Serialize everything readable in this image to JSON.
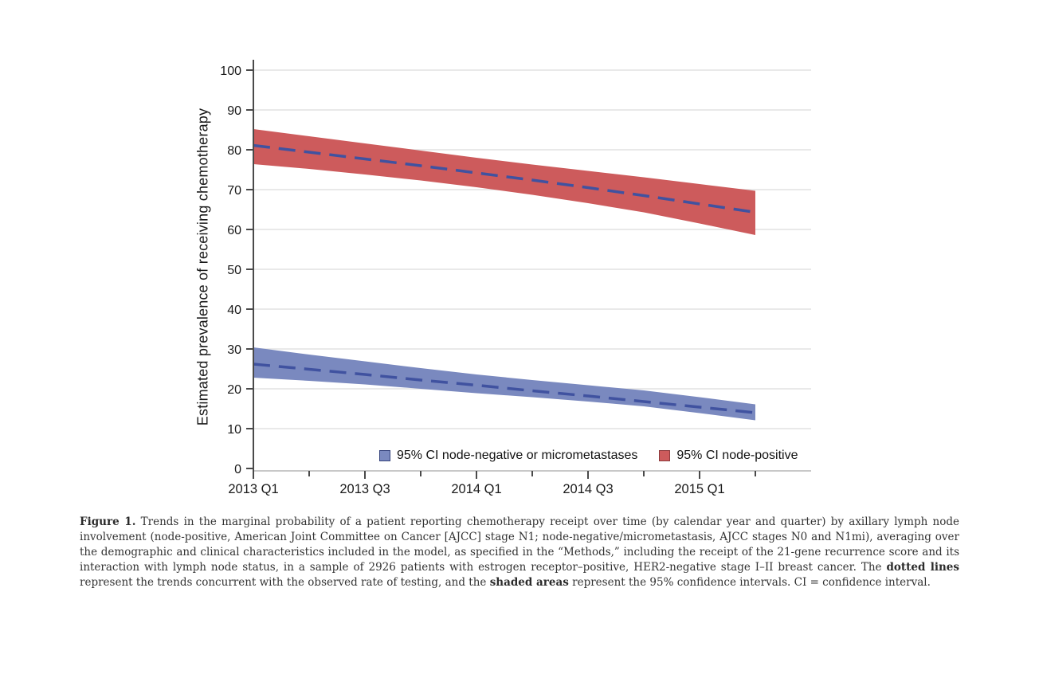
{
  "figure": {
    "caption": {
      "label": "Figure 1.",
      "body_before_bold1": " Trends in the marginal probability of a patient reporting chemotherapy receipt over time (by calendar year and quarter) by axillary lymph node involvement (node-positive, American Joint Committee on Cancer [AJCC] stage N1; node-negative/micrometastasis, AJCC stages N0 and N1mi), averaging over the demographic and clinical characteristics included in the model, as specified in the “Methods,” including the receipt of the 21-gene recurrence score and its interaction with lymph node status, in a sample of 2926 patients with estrogen receptor–positive, HER2-negative stage I–II breast cancer. The ",
      "bold1": "dotted lines",
      "body_middle": " represent the trends concurrent with the observed rate of testing, and the ",
      "bold2": "shaded areas",
      "body_after": " represent the 95% confidence intervals. CI = confidence interval."
    }
  },
  "chart_data": {
    "type": "area",
    "title": "",
    "xlabel": "",
    "ylabel": "Estimated prevalence of receiving chemotherapy",
    "ylim": [
      0,
      100
    ],
    "yticks": [
      0,
      10,
      20,
      30,
      40,
      50,
      60,
      70,
      80,
      90,
      100
    ],
    "grid": "horizontal",
    "grid_color": "#e2e2e2",
    "axis_color": "#4a4a4a",
    "baseline_color": "#c8c8c8",
    "legend_position": "bottom-inside",
    "x_quarters": [
      "2013 Q1",
      "2013 Q2",
      "2013 Q3",
      "2013 Q4",
      "2014 Q1",
      "2014 Q2",
      "2014 Q3",
      "2014 Q4",
      "2015 Q1",
      "2015 Q2"
    ],
    "xtick_labels_major": [
      "2013 Q1",
      "2013 Q3",
      "2014 Q1",
      "2014 Q3",
      "2015 Q1"
    ],
    "series": [
      {
        "id": "node-negative",
        "name": "95% CI node-negative or micrometastases",
        "band_color": "#7a89bf",
        "line_color": "#4052a0",
        "swatch_border": "#34427c",
        "center": [
          26.2,
          24.9,
          23.6,
          22.2,
          20.9,
          19.5,
          18.2,
          16.8,
          15.4,
          14.0
        ],
        "upper": [
          30.4,
          28.6,
          26.9,
          25.2,
          23.6,
          22.2,
          20.9,
          19.6,
          17.9,
          16.1
        ],
        "lower": [
          22.8,
          22.0,
          21.1,
          20.0,
          18.9,
          17.9,
          16.8,
          15.6,
          13.9,
          12.1
        ]
      },
      {
        "id": "node-positive",
        "name": "95% CI node-positive",
        "band_color": "#cd5b5c",
        "line_color": "#4052a0",
        "swatch_border": "#8c3a3c",
        "center": [
          81.1,
          79.4,
          77.7,
          76.0,
          74.2,
          72.4,
          70.5,
          68.5,
          66.4,
          64.3
        ],
        "upper": [
          85.2,
          83.4,
          81.6,
          79.8,
          78.0,
          76.3,
          74.7,
          73.1,
          71.4,
          69.7
        ],
        "lower": [
          76.4,
          75.2,
          73.8,
          72.3,
          70.6,
          68.7,
          66.6,
          64.3,
          61.5,
          58.6
        ]
      }
    ]
  }
}
